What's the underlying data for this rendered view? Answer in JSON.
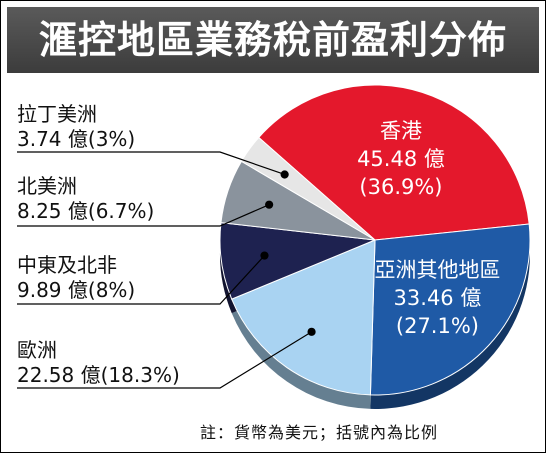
{
  "title": "滙控地區業務稅前盈利分佈",
  "note": "註：貨幣為美元；括號內為比例",
  "chart_data": {
    "type": "pie",
    "title": "滙控地區業務稅前盈利分佈",
    "unit": "億",
    "slices": [
      {
        "name": "香港",
        "value": 45.48,
        "percent": "36.9%",
        "value_label": "45.48 億",
        "percent_label": "(36.9%)",
        "color": "#e4182c"
      },
      {
        "name": "亞洲其他地區",
        "value": 33.46,
        "percent": "27.1%",
        "value_label": "33.46 億",
        "percent_label": "(27.1%)",
        "color": "#1f5aa6"
      },
      {
        "name": "歐洲",
        "value": 22.58,
        "percent": "18.3%",
        "value_label": "22.58 億",
        "percent_label": "(18.3%)",
        "color": "#a9d3f2"
      },
      {
        "name": "中東及北非",
        "value": 9.89,
        "percent": "8%",
        "value_label": "9.89 億",
        "percent_label": "(8%)",
        "color": "#1e2250"
      },
      {
        "name": "北美洲",
        "value": 8.25,
        "percent": "6.7%",
        "value_label": "8.25 億",
        "percent_label": "(6.7%)",
        "color": "#8a939d"
      },
      {
        "name": "拉丁美洲",
        "value": 3.74,
        "percent": "3%",
        "value_label": "3.74 億",
        "percent_label": "(3%)",
        "color": "#e6e6e6"
      }
    ]
  }
}
